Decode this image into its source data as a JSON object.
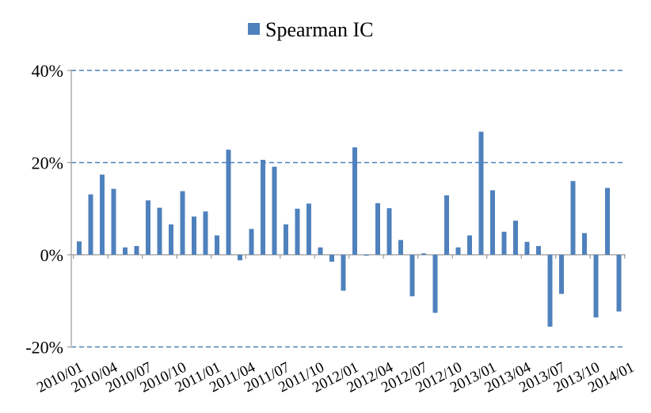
{
  "chart_data": {
    "type": "bar",
    "legend": {
      "label": "Spearman IC",
      "position": "top",
      "color": "#4f81bd"
    },
    "bar_color": "#4f81bd",
    "grid_color": "#4f81bd",
    "grid": "dashed-horizontal",
    "ylim": [
      -0.2,
      0.4
    ],
    "yticks": [
      {
        "value": 0.4,
        "label": "40%"
      },
      {
        "value": 0.2,
        "label": "20%"
      },
      {
        "value": 0.0,
        "label": "0%"
      },
      {
        "value": -0.2,
        "label": "-20%"
      }
    ],
    "categories": [
      "2010/01",
      "2010/02",
      "2010/03",
      "2010/04",
      "2010/05",
      "2010/06",
      "2010/07",
      "2010/08",
      "2010/09",
      "2010/10",
      "2010/11",
      "2010/12",
      "2011/01",
      "2011/02",
      "2011/03",
      "2011/04",
      "2011/05",
      "2011/06",
      "2011/07",
      "2011/08",
      "2011/09",
      "2011/10",
      "2011/11",
      "2011/12",
      "2012/01",
      "2012/02",
      "2012/03",
      "2012/04",
      "2012/05",
      "2012/06",
      "2012/07",
      "2012/08",
      "2012/09",
      "2012/10",
      "2012/11",
      "2012/12",
      "2013/01",
      "2013/02",
      "2013/03",
      "2013/04",
      "2013/05",
      "2013/06",
      "2013/07",
      "2013/08",
      "2013/09",
      "2013/10",
      "2013/11",
      "2013/12",
      "2014/01"
    ],
    "xtick_labels": [
      "2010/01",
      "2010/04",
      "2010/07",
      "2010/10",
      "2011/01",
      "2011/04",
      "2011/07",
      "2011/10",
      "2012/01",
      "2012/04",
      "2012/07",
      "2012/10",
      "2013/01",
      "2013/04",
      "2013/07",
      "2013/10",
      "2014/01"
    ],
    "series": [
      {
        "name": "Spearman IC",
        "values": [
          0.029,
          0.131,
          0.174,
          0.143,
          0.016,
          0.019,
          0.118,
          0.102,
          0.066,
          0.138,
          0.083,
          0.094,
          0.042,
          0.228,
          -0.012,
          0.056,
          0.206,
          0.191,
          0.066,
          0.1,
          0.111,
          0.016,
          -0.015,
          -0.078,
          0.233,
          -0.002,
          0.112,
          0.101,
          0.032,
          -0.09,
          0.003,
          -0.126,
          0.129,
          0.016,
          0.042,
          0.267,
          0.14,
          0.05,
          0.074,
          0.028,
          0.019,
          -0.156,
          -0.085,
          0.16,
          0.047,
          -0.136,
          0.145,
          -0.123,
          0.0
        ]
      }
    ]
  }
}
